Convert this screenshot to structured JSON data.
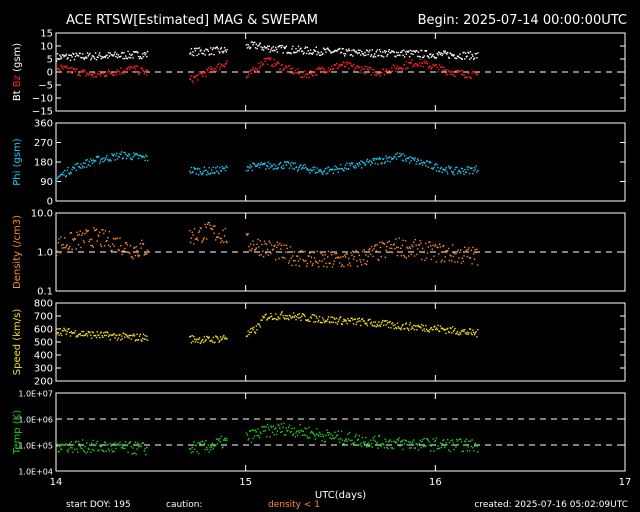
{
  "header": {
    "title": "ACE RTSW[Estimated] MAG & SWEPAM",
    "begin": "Begin: 2025-07-14 00:00:00UTC"
  },
  "footer": {
    "start_doy": "start DOY: 195",
    "caution": "caution:",
    "density_note": "density < 1",
    "created": "created: 2025-07-16 05:02:09UTC"
  },
  "colors": {
    "background": "#000000",
    "axes": "#ffffff",
    "bt": "#ffffff",
    "bz": "#ff2020",
    "phi": "#22c8f0",
    "density": "#ff8a30",
    "speed": "#f0e020",
    "temp": "#20d020"
  },
  "chart_data": [
    {
      "type": "scatter",
      "panel": "mag",
      "ylabel_parts": [
        "Bt",
        "Bz",
        "(gsm)"
      ],
      "xlim": [
        14,
        17
      ],
      "ylim": [
        -15,
        15
      ],
      "yticks": [
        -15,
        -10,
        -5,
        0,
        5,
        10,
        15
      ],
      "ytick_labels": [
        "−15",
        "−10",
        "−5",
        "0",
        "5",
        "10",
        "15"
      ],
      "dashed": [
        0
      ],
      "series": [
        {
          "name": "Bt",
          "color_key": "bt",
          "x": [
            14.0,
            14.3,
            14.48,
            14.7,
            14.9,
            15.0,
            15.05,
            15.1,
            15.3,
            15.6,
            15.8,
            16.0,
            16.1,
            16.22
          ],
          "values": [
            6,
            6.5,
            7,
            8,
            8.5,
            10,
            10.5,
            9.5,
            8.5,
            7.5,
            7.5,
            7,
            6.8,
            6.5
          ]
        },
        {
          "name": "Bz",
          "color_key": "bz",
          "x": [
            14.0,
            14.2,
            14.4,
            14.48,
            14.7,
            14.9,
            15.0,
            15.1,
            15.3,
            15.5,
            15.7,
            15.9,
            16.0,
            16.1,
            16.22
          ],
          "values": [
            2,
            -1,
            1.5,
            0,
            -3,
            4,
            -2,
            5,
            -1,
            3,
            0,
            4,
            2,
            0,
            -1
          ]
        }
      ]
    },
    {
      "type": "scatter",
      "panel": "phi",
      "ylabel": "Phi (gsm)",
      "xlim": [
        14,
        17
      ],
      "ylim": [
        0,
        360
      ],
      "yticks": [
        0,
        90,
        180,
        270,
        360
      ],
      "ytick_labels": [
        "0",
        "90",
        "180",
        "270",
        "360"
      ],
      "series": [
        {
          "name": "Phi",
          "color_key": "phi",
          "x": [
            14.0,
            14.1,
            14.2,
            14.35,
            14.48,
            14.6,
            14.8,
            15.0,
            15.2,
            15.4,
            15.6,
            15.8,
            16.0,
            16.1,
            16.22
          ],
          "values": [
            110,
            160,
            190,
            215,
            200,
            150,
            140,
            160,
            170,
            140,
            170,
            210,
            160,
            140,
            150
          ]
        }
      ]
    },
    {
      "type": "scatter",
      "panel": "density",
      "ylabel": "Density (/cm3)",
      "yscale": "log",
      "xlim": [
        14,
        17
      ],
      "ylim": [
        0.1,
        10
      ],
      "yticks": [
        0.1,
        1,
        10
      ],
      "ytick_labels": [
        "0.1",
        "1.0",
        "10.0"
      ],
      "dashed": [
        1
      ],
      "series": [
        {
          "name": "Density",
          "color_key": "density",
          "x": [
            14.0,
            14.2,
            14.4,
            14.6,
            14.8,
            15.0,
            15.2,
            15.4,
            15.6,
            15.8,
            16.0,
            16.22
          ],
          "values": [
            1.5,
            2.5,
            1.2,
            1.5,
            3.5,
            1.8,
            0.9,
            0.6,
            0.7,
            1.4,
            1.0,
            0.8
          ]
        }
      ]
    },
    {
      "type": "scatter",
      "panel": "speed",
      "ylabel": "Speed (km/s)",
      "xlim": [
        14,
        17
      ],
      "ylim": [
        200,
        800
      ],
      "yticks": [
        200,
        300,
        400,
        500,
        600,
        700,
        800
      ],
      "ytick_labels": [
        "200",
        "300",
        "400",
        "500",
        "600",
        "700",
        "800"
      ],
      "series": [
        {
          "name": "Speed",
          "color_key": "speed",
          "x": [
            14.0,
            14.2,
            14.4,
            14.6,
            14.8,
            15.0,
            15.05,
            15.1,
            15.2,
            15.4,
            15.6,
            15.8,
            16.0,
            16.22
          ],
          "values": [
            590,
            560,
            540,
            540,
            520,
            560,
            600,
            700,
            710,
            680,
            660,
            630,
            610,
            570
          ]
        }
      ]
    },
    {
      "type": "scatter",
      "panel": "temp",
      "ylabel": "Temp (K)",
      "yscale": "log",
      "xlim": [
        14,
        17
      ],
      "ylim": [
        10000,
        10000000
      ],
      "yticks": [
        10000,
        100000,
        1000000,
        10000000
      ],
      "ytick_labels": [
        "1.0E+04",
        "1.0E+05",
        "1.0E+06",
        "1.0E+07"
      ],
      "dashed": [
        100000,
        1000000
      ],
      "xticks": [
        14,
        15,
        16,
        17
      ],
      "xtick_labels": [
        "14",
        "15",
        "16",
        "17"
      ],
      "xlabel": "UTC(days)",
      "series": [
        {
          "name": "Temp",
          "color_key": "temp",
          "x": [
            14.0,
            14.2,
            14.4,
            14.6,
            14.8,
            15.0,
            15.1,
            15.2,
            15.4,
            15.6,
            15.8,
            16.0,
            16.22
          ],
          "values": [
            100000,
            90000,
            80000,
            70000,
            90000,
            200000,
            350000,
            450000,
            250000,
            160000,
            120000,
            110000,
            100000
          ]
        }
      ]
    }
  ]
}
